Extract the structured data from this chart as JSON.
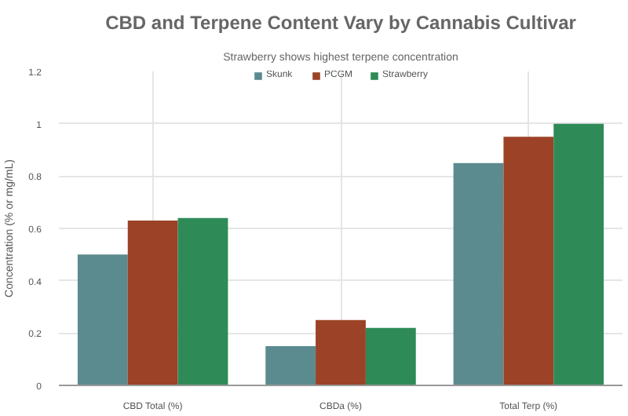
{
  "chart_data": {
    "type": "bar",
    "title": "CBD and Terpene Content Vary by Cannabis Cultivar",
    "subtitle": "Strawberry shows highest terpene concentration",
    "ylabel": "Concentration (% or mg/mL)",
    "categories": [
      "CBD Total (%)",
      "CBDa (%)",
      "Total Terp (%)"
    ],
    "series": [
      {
        "name": "Skunk",
        "color": "#5b8a8f",
        "values": [
          0.5,
          0.15,
          0.85
        ]
      },
      {
        "name": "PCGM",
        "color": "#9c4226",
        "values": [
          0.63,
          0.25,
          0.95
        ]
      },
      {
        "name": "Strawberry",
        "color": "#2e8b57",
        "values": [
          0.64,
          0.22,
          1.0
        ]
      }
    ],
    "ylim": [
      0,
      1.2
    ],
    "yticks": [
      0,
      0.2,
      0.4,
      0.6,
      0.8,
      1,
      1.2
    ],
    "grid": true,
    "legend": "top"
  }
}
